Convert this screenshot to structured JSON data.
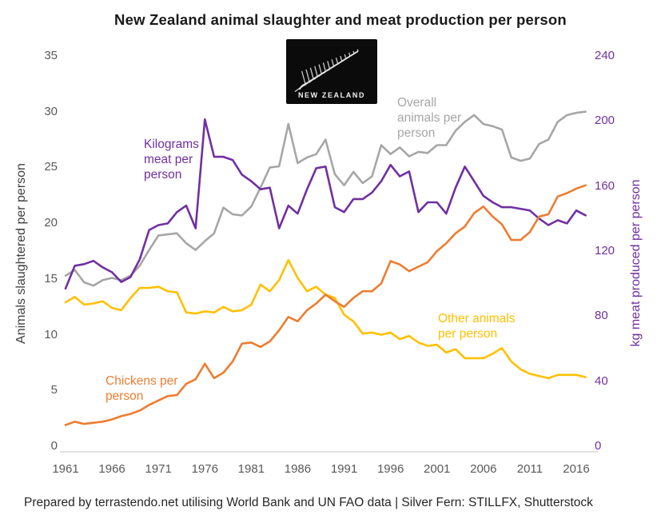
{
  "title": "New Zealand animal slaughter and meat production per person",
  "footer": "Prepared by terrastendo.net utilising World Bank and UN FAO data | Silver Fern: STILLFX, Shutterstock",
  "flag": {
    "caption": "NEW ZEALAND",
    "icon": "silver-fern-icon"
  },
  "colors": {
    "overall": "#A6A6A6",
    "meat_kg": "#7030A0",
    "chickens": "#ED7D31",
    "other": "#FFC000",
    "axis_text": "#595959",
    "axis_line": "#D9D9D9",
    "left_axis_title": "#404040",
    "right_axis_title": "#7030A0"
  },
  "left_axis": {
    "title": "Animals slaughtered per person",
    "ticks": [
      0,
      5,
      10,
      15,
      20,
      25,
      30,
      35
    ],
    "range": [
      0,
      35
    ]
  },
  "right_axis": {
    "title": "kg meat produced per person",
    "ticks": [
      0,
      40,
      80,
      120,
      160,
      200,
      240
    ],
    "range": [
      0,
      240
    ]
  },
  "x_axis": {
    "ticks": [
      1961,
      1966,
      1971,
      1976,
      1981,
      1986,
      1991,
      1996,
      2001,
      2006,
      2011,
      2016
    ],
    "range": [
      1961,
      2017
    ]
  },
  "annotations": [
    {
      "id": "kilograms-meat-label",
      "lines": [
        "Kilograms",
        "meat per",
        "person"
      ],
      "color": "#7030A0"
    },
    {
      "id": "overall-animals-label",
      "lines": [
        "Overall",
        "animals per",
        "person"
      ],
      "color": "#A6A6A6"
    },
    {
      "id": "chickens-label",
      "lines": [
        "Chickens per",
        "person"
      ],
      "color": "#ED7D31"
    },
    {
      "id": "other-animals-label",
      "lines": [
        "Other animals",
        "per person"
      ],
      "color": "#FFC000"
    }
  ],
  "chart_data": {
    "type": "line",
    "title": "New Zealand animal slaughter and meat production per person",
    "grid": false,
    "legend": "inline-annotations",
    "x": [
      1961,
      1962,
      1963,
      1964,
      1965,
      1966,
      1967,
      1968,
      1969,
      1970,
      1971,
      1972,
      1973,
      1974,
      1975,
      1976,
      1977,
      1978,
      1979,
      1980,
      1981,
      1982,
      1983,
      1984,
      1985,
      1986,
      1987,
      1988,
      1989,
      1990,
      1991,
      1992,
      1993,
      1994,
      1995,
      1996,
      1997,
      1998,
      1999,
      2000,
      2001,
      2002,
      2003,
      2004,
      2005,
      2006,
      2007,
      2008,
      2009,
      2010,
      2011,
      2012,
      2013,
      2014,
      2015,
      2016,
      2017
    ],
    "series": [
      {
        "name": "Overall animals per person",
        "axis": "left",
        "color_key": "overall",
        "values": [
          15.3,
          15.8,
          14.7,
          14.4,
          14.9,
          15.1,
          14.9,
          15.3,
          16.2,
          17.6,
          18.9,
          19.0,
          19.1,
          18.2,
          17.6,
          18.4,
          19.1,
          21.4,
          20.8,
          20.7,
          21.5,
          23.2,
          25.0,
          25.1,
          28.9,
          25.4,
          25.9,
          26.2,
          27.5,
          24.4,
          23.4,
          24.6,
          23.6,
          24.2,
          27.0,
          26.2,
          26.8,
          26.0,
          26.4,
          26.3,
          27.0,
          27.0,
          28.3,
          29.1,
          29.7,
          28.9,
          28.7,
          28.4,
          25.9,
          25.6,
          25.8,
          27.1,
          27.5,
          29.1,
          29.7,
          29.9,
          30.0
        ]
      },
      {
        "name": "Other animals per person",
        "axis": "left",
        "color_key": "other",
        "values": [
          12.9,
          13.4,
          12.7,
          12.8,
          13.0,
          12.4,
          12.2,
          13.3,
          14.2,
          14.2,
          14.3,
          13.9,
          13.8,
          12.0,
          11.9,
          12.1,
          12.0,
          12.5,
          12.1,
          12.2,
          12.7,
          14.5,
          13.9,
          14.9,
          16.7,
          15.1,
          13.9,
          14.3,
          13.6,
          13.3,
          11.8,
          11.2,
          10.1,
          10.2,
          10.0,
          10.2,
          9.6,
          9.9,
          9.3,
          9.0,
          9.1,
          8.4,
          8.7,
          7.9,
          7.9,
          7.9,
          8.3,
          8.8,
          7.6,
          6.9,
          6.5,
          6.3,
          6.1,
          6.4,
          6.4,
          6.4,
          6.2
        ]
      },
      {
        "name": "Kilograms meat per person",
        "axis": "right",
        "color_key": "meat_kg",
        "values": [
          97,
          111,
          112,
          114,
          110,
          107,
          101,
          104,
          115,
          133,
          136,
          137,
          144,
          148,
          134,
          201,
          178,
          178,
          176,
          167,
          163,
          158,
          159,
          134,
          148,
          143,
          158,
          171,
          172,
          147,
          144,
          152,
          152,
          156,
          163,
          173,
          166,
          169,
          144,
          150,
          150,
          143,
          159,
          172,
          163,
          154,
          150,
          147,
          147,
          146,
          145,
          140,
          136,
          139,
          137,
          145,
          142
        ]
      },
      {
        "name": "Chickens per person",
        "axis": "left",
        "color_key": "chickens",
        "values": [
          1.9,
          2.2,
          2.0,
          2.1,
          2.2,
          2.4,
          2.7,
          2.9,
          3.2,
          3.7,
          4.1,
          4.5,
          4.6,
          5.6,
          6.0,
          7.4,
          6.1,
          6.6,
          7.6,
          9.2,
          9.3,
          8.9,
          9.4,
          10.4,
          11.6,
          11.2,
          12.2,
          12.8,
          13.6,
          13.0,
          12.5,
          13.3,
          13.9,
          13.9,
          14.6,
          16.6,
          16.3,
          15.7,
          16.1,
          16.5,
          17.5,
          18.2,
          19.1,
          19.7,
          20.9,
          21.5,
          20.6,
          19.9,
          18.5,
          18.5,
          19.2,
          20.6,
          20.8,
          22.4,
          22.7,
          23.1,
          23.4
        ]
      }
    ]
  }
}
